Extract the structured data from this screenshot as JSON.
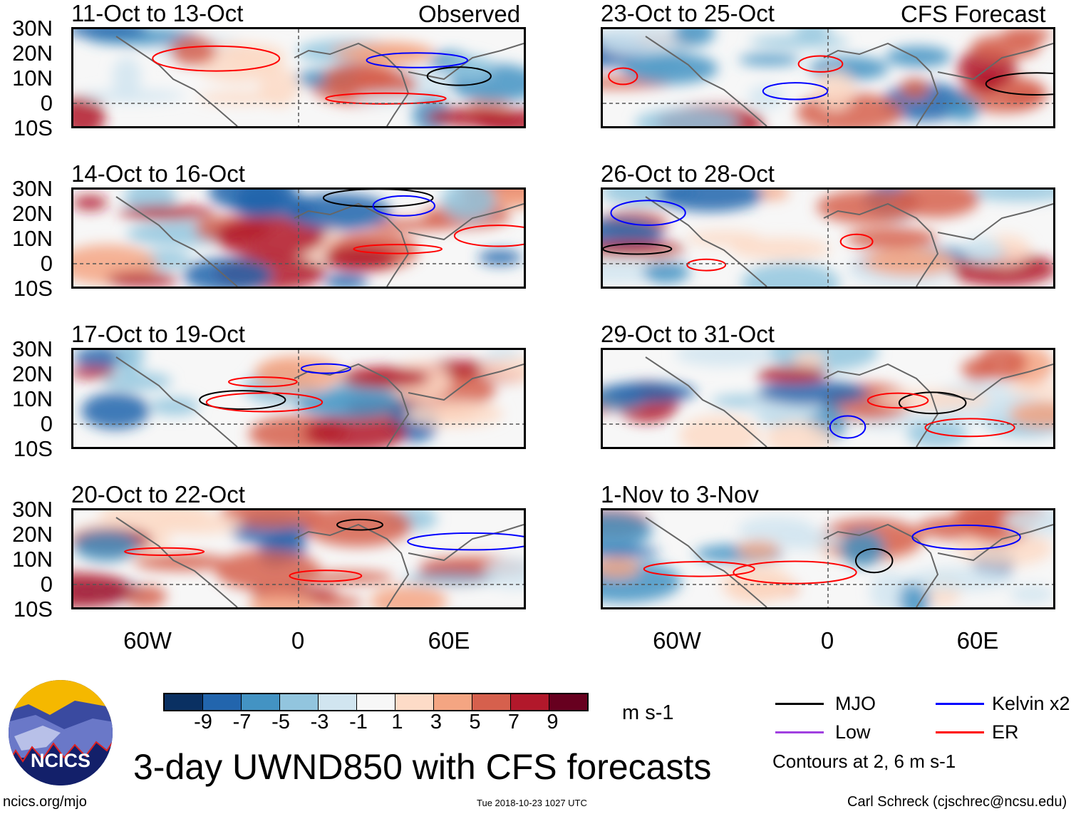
{
  "header": {
    "observed_label": "Observed",
    "forecast_label": "CFS Forecast"
  },
  "panels": {
    "observed": [
      "11-Oct to 13-Oct",
      "14-Oct to 16-Oct",
      "17-Oct to 19-Oct",
      "20-Oct to 22-Oct"
    ],
    "forecast": [
      "23-Oct to 25-Oct",
      "26-Oct to 28-Oct",
      "29-Oct to 31-Oct",
      "1-Nov to 3-Nov"
    ]
  },
  "axes": {
    "lat_labels": [
      "30N",
      "20N",
      "10N",
      "0",
      "10S"
    ],
    "lon_labels": [
      "60W",
      "0",
      "60E"
    ]
  },
  "colorbar": {
    "colors": [
      "#0a3062",
      "#2265ad",
      "#4393c3",
      "#92c5de",
      "#d1e5f0",
      "#f7f7f7",
      "#fddbc7",
      "#f4a582",
      "#d6604d",
      "#b2182b",
      "#67001f"
    ],
    "ticks": [
      "-9",
      "-7",
      "-5",
      "-3",
      "-1",
      "1",
      "3",
      "5",
      "7",
      "9"
    ],
    "units": "m s-1"
  },
  "legend": {
    "items": [
      {
        "label": "MJO",
        "color": "#000000"
      },
      {
        "label": "Kelvin x2",
        "color": "#0000ff"
      },
      {
        "label": "Low",
        "color": "#a040e0"
      },
      {
        "label": "ER",
        "color": "#ff0000"
      }
    ],
    "contours_note": "Contours at 2, 6 m s-1"
  },
  "title": "3-day UWND850 with CFS forecasts",
  "logo_text": "NCICS",
  "footer": {
    "url": "ncics.org/mjo",
    "timestamp": "Tue 2018-10-23 1027 UTC",
    "credit": "Carl Schreck (cjschrec@ncsu.edu)"
  }
}
